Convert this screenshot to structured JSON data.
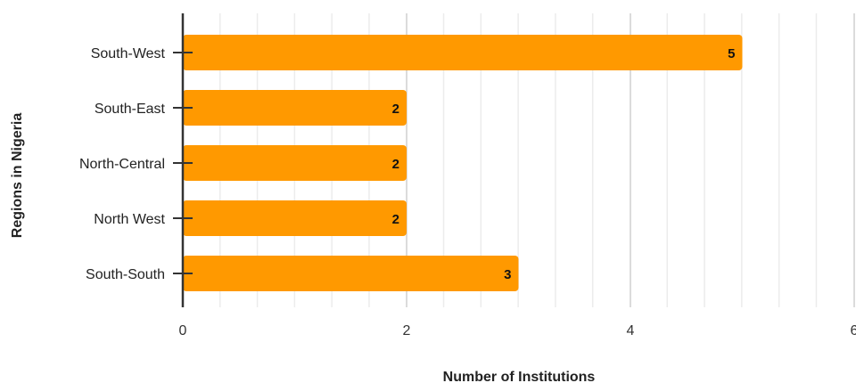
{
  "chart_data": {
    "type": "bar",
    "orientation": "horizontal",
    "categories": [
      "South-West",
      "South-East",
      "North-Central",
      "North West",
      "South-South"
    ],
    "values": [
      5,
      2,
      2,
      2,
      3
    ],
    "data_labels": [
      "5",
      "2",
      "2",
      "2",
      "3"
    ],
    "xlabel": "Number of Institutions",
    "ylabel": "Regions in Nigeria",
    "xlim": [
      0,
      6
    ],
    "major_ticks": [
      0,
      2,
      4,
      6
    ],
    "tick_labels": [
      "0",
      "2",
      "4",
      "6"
    ],
    "minor_step": 0.333,
    "grid": true,
    "bar_color": "#FF9900"
  }
}
